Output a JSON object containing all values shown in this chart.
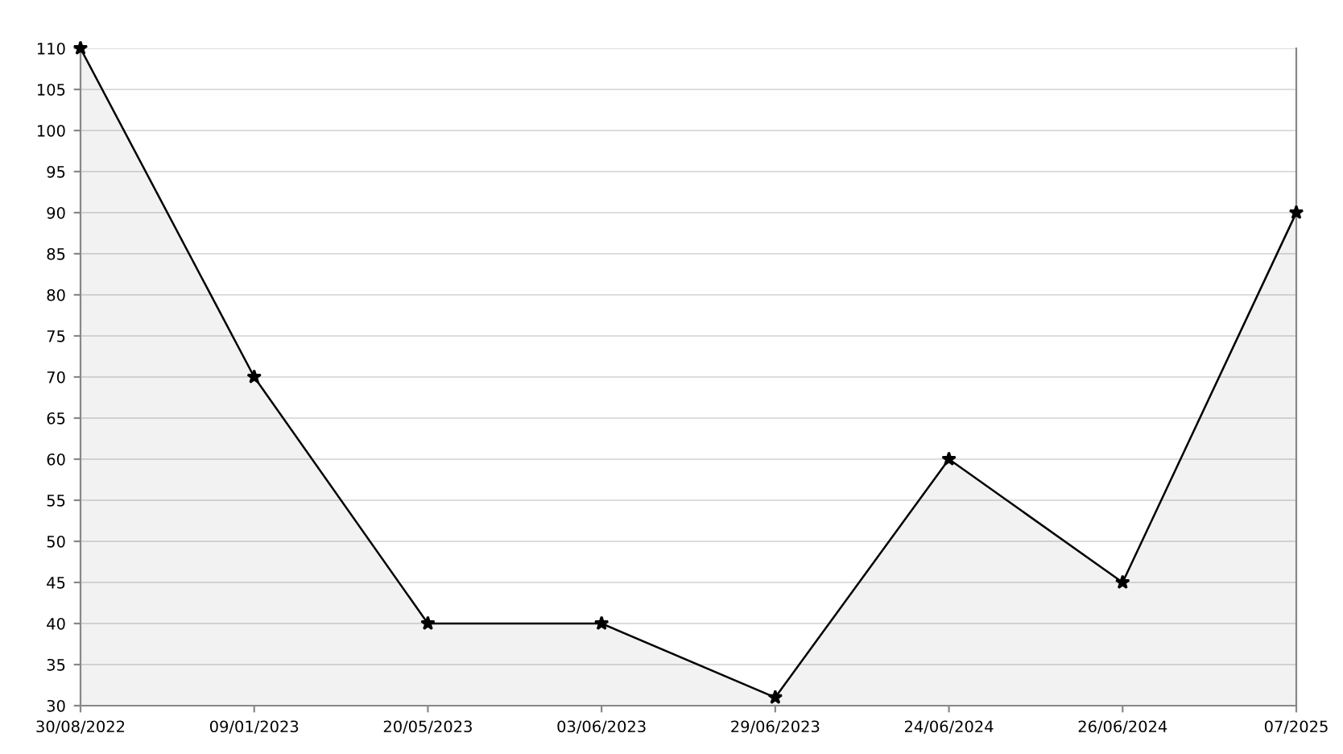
{
  "chart_data": {
    "type": "area",
    "categories": [
      "30/08/2022",
      "09/01/2023",
      "20/05/2023",
      "03/06/2023",
      "29/06/2023",
      "24/06/2024",
      "26/06/2024",
      "07/2025"
    ],
    "series": [
      {
        "color": "#000000",
        "values": [
          110,
          70,
          40,
          40,
          31,
          60,
          45,
          90
        ]
      }
    ],
    "ylim": [
      30,
      110
    ],
    "yticks": [
      30,
      35,
      40,
      45,
      50,
      55,
      60,
      65,
      70,
      75,
      80,
      85,
      90,
      95,
      100,
      105,
      110
    ],
    "grid": "y",
    "marker": "star",
    "line_style": "solid"
  }
}
